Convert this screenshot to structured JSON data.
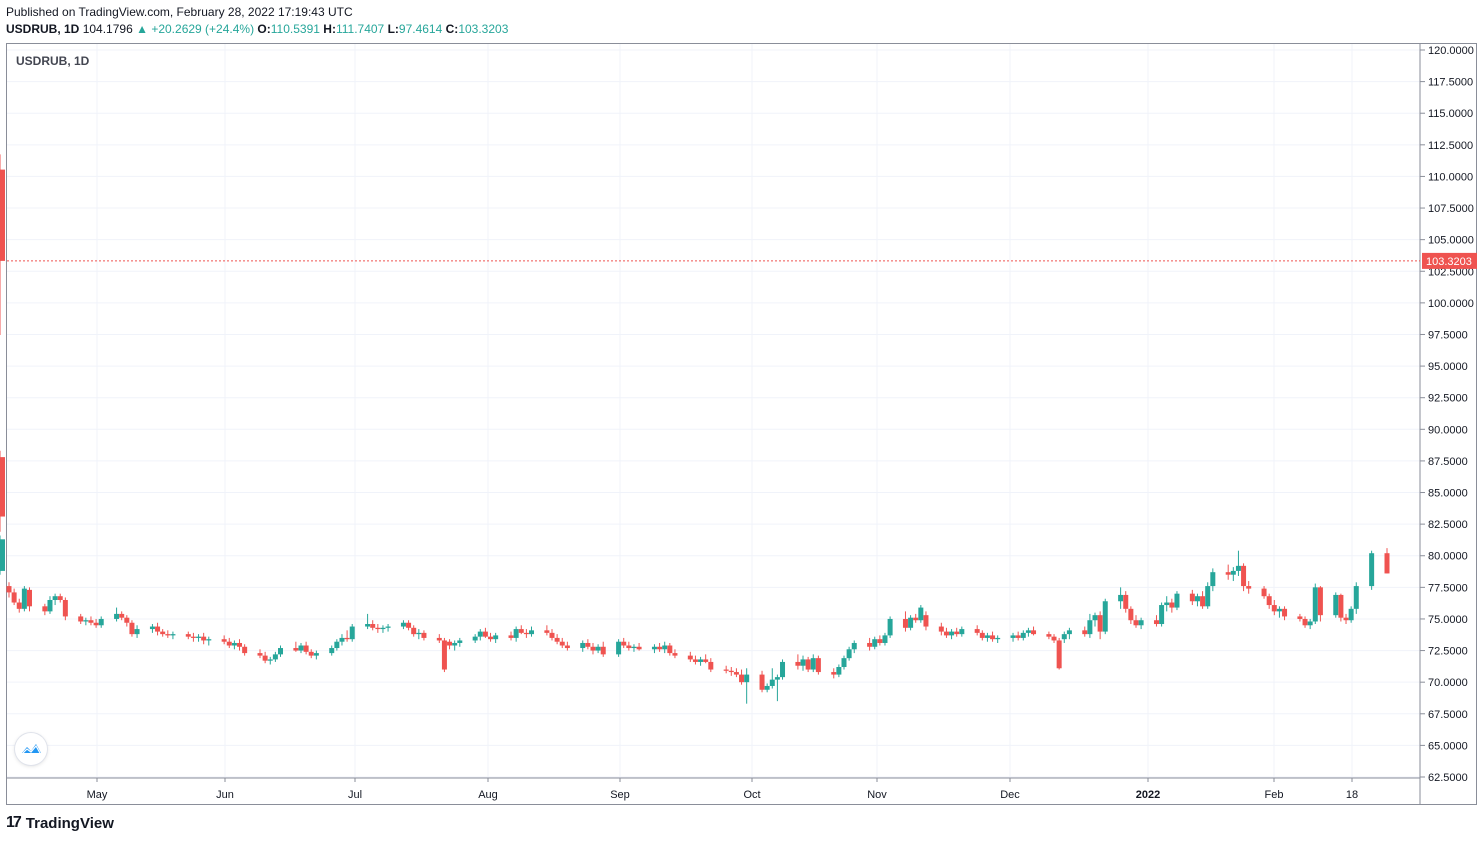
{
  "header": {
    "published": "Published on TradingView.com, February 28, 2022 17:19:43 UTC",
    "symbol": "USDRUB, 1D",
    "last": "104.1796",
    "change_arrow": "▲",
    "change": "+20.2629 (+24.4%)",
    "o_label": "O:",
    "o_value": "110.5391",
    "h_label": "H:",
    "h_value": "111.7407",
    "l_label": "L:",
    "l_value": "97.4614",
    "c_label": "C:",
    "c_value": "103.3203"
  },
  "legend_title": "USDRUB, 1D",
  "footer": {
    "brand": "TradingView",
    "brand_icon": "tradingview-logo-icon"
  },
  "colors": {
    "up": "#26a69a",
    "down": "#ef5350",
    "grid": "#f0f3fa",
    "price_line": "#ef5350",
    "badge": "#2962ff"
  },
  "chart_data": {
    "type": "candlestick",
    "symbol": "USDRUB",
    "interval": "1D",
    "ylim": [
      62.5,
      121.0
    ],
    "y_ticks": [
      "62.5000",
      "65.0000",
      "67.5000",
      "70.0000",
      "72.5000",
      "75.0000",
      "77.5000",
      "80.0000",
      "82.5000",
      "85.0000",
      "87.5000",
      "90.0000",
      "92.5000",
      "95.0000",
      "97.5000",
      "100.0000",
      "102.5000",
      "105.0000",
      "107.5000",
      "110.0000",
      "112.5000",
      "115.0000",
      "117.5000",
      "120.0000"
    ],
    "x_labels": [
      "May",
      "Jun",
      "Jul",
      "Aug",
      "Sep",
      "Oct",
      "Nov",
      "Dec",
      "2022",
      "Feb",
      "18"
    ],
    "last_price_label": "103.3203",
    "last_price": 103.3203,
    "grid": true,
    "candles": [
      [
        77.6,
        77.9,
        76.7,
        77.1
      ],
      [
        77.1,
        77.4,
        76.1,
        76.3
      ],
      [
        76.3,
        76.6,
        75.5,
        75.8
      ],
      [
        75.8,
        77.6,
        75.6,
        77.4
      ],
      [
        77.3,
        77.5,
        75.6,
        76.0
      ],
      [
        76.0,
        76.2,
        75.3,
        75.6
      ],
      [
        75.6,
        76.8,
        75.4,
        76.5
      ],
      [
        76.5,
        77.0,
        76.1,
        76.8
      ],
      [
        76.8,
        77.0,
        76.3,
        76.5
      ],
      [
        76.5,
        76.7,
        74.9,
        75.2
      ],
      [
        75.2,
        75.4,
        74.6,
        74.8
      ],
      [
        74.8,
        75.1,
        74.5,
        74.9
      ],
      [
        74.9,
        75.2,
        74.5,
        74.7
      ],
      [
        74.7,
        75.0,
        74.3,
        74.5
      ],
      [
        74.5,
        75.2,
        74.3,
        75.0
      ],
      [
        75.0,
        75.9,
        74.8,
        75.4
      ],
      [
        75.4,
        75.6,
        74.9,
        75.1
      ],
      [
        75.1,
        75.3,
        74.4,
        74.7
      ],
      [
        74.7,
        74.9,
        73.6,
        73.8
      ],
      [
        73.8,
        74.5,
        73.5,
        74.2
      ],
      [
        74.2,
        74.6,
        73.9,
        74.4
      ],
      [
        74.4,
        74.7,
        73.7,
        74.0
      ],
      [
        74.0,
        74.2,
        73.6,
        73.8
      ],
      [
        73.8,
        74.1,
        73.5,
        73.7
      ],
      [
        73.7,
        74.0,
        73.4,
        73.8
      ],
      [
        73.8,
        74.0,
        73.4,
        73.6
      ],
      [
        73.6,
        73.9,
        73.2,
        73.5
      ],
      [
        73.5,
        73.8,
        73.2,
        73.6
      ],
      [
        73.6,
        73.9,
        73.0,
        73.3
      ],
      [
        73.3,
        73.6,
        72.9,
        73.4
      ],
      [
        73.4,
        73.7,
        73.0,
        73.2
      ],
      [
        73.2,
        73.5,
        72.7,
        72.9
      ],
      [
        72.9,
        73.3,
        72.6,
        73.1
      ],
      [
        73.1,
        73.4,
        72.5,
        72.8
      ],
      [
        72.8,
        73.0,
        72.1,
        72.3
      ],
      [
        72.3,
        72.6,
        71.9,
        72.1
      ],
      [
        72.1,
        72.4,
        71.5,
        71.7
      ],
      [
        71.7,
        72.0,
        71.4,
        71.8
      ],
      [
        71.8,
        72.4,
        71.6,
        72.2
      ],
      [
        72.2,
        72.9,
        72.0,
        72.7
      ],
      [
        72.7,
        73.2,
        72.4,
        72.5
      ],
      [
        72.5,
        73.1,
        72.3,
        72.9
      ],
      [
        72.9,
        73.2,
        72.2,
        72.4
      ],
      [
        72.4,
        72.6,
        71.9,
        72.1
      ],
      [
        72.1,
        72.5,
        71.8,
        72.3
      ],
      [
        72.3,
        72.9,
        72.1,
        72.7
      ],
      [
        72.7,
        73.4,
        72.5,
        73.2
      ],
      [
        73.2,
        73.8,
        72.9,
        73.5
      ],
      [
        73.5,
        74.1,
        73.2,
        73.4
      ],
      [
        73.4,
        74.6,
        73.2,
        74.4
      ],
      [
        74.4,
        75.4,
        74.2,
        74.6
      ],
      [
        74.6,
        74.9,
        74.1,
        74.3
      ],
      [
        74.3,
        74.6,
        73.9,
        74.2
      ],
      [
        74.2,
        74.5,
        73.9,
        74.3
      ],
      [
        74.3,
        74.6,
        74.0,
        74.4
      ],
      [
        74.4,
        74.9,
        74.2,
        74.7
      ],
      [
        74.7,
        74.9,
        74.1,
        74.3
      ],
      [
        74.3,
        74.5,
        73.6,
        73.8
      ],
      [
        73.8,
        74.2,
        73.4,
        73.9
      ],
      [
        73.9,
        74.1,
        73.3,
        73.5
      ],
      [
        73.5,
        73.8,
        73.1,
        73.3
      ],
      [
        73.3,
        73.5,
        70.8,
        71.0
      ],
      [
        73.2,
        73.4,
        72.6,
        72.9
      ],
      [
        72.9,
        73.3,
        72.5,
        73.1
      ],
      [
        73.1,
        73.5,
        72.8,
        73.3
      ],
      [
        73.3,
        73.8,
        73.1,
        73.6
      ],
      [
        73.6,
        74.2,
        73.3,
        74.0
      ],
      [
        74.0,
        74.3,
        73.5,
        73.6
      ],
      [
        73.6,
        73.9,
        73.2,
        73.4
      ],
      [
        73.4,
        73.9,
        73.1,
        73.7
      ],
      [
        73.7,
        74.0,
        73.3,
        73.5
      ],
      [
        73.5,
        74.4,
        73.2,
        74.2
      ],
      [
        74.2,
        74.5,
        73.8,
        73.9
      ],
      [
        73.9,
        74.2,
        73.5,
        73.8
      ],
      [
        73.8,
        74.4,
        73.6,
        74.1
      ],
      [
        74.1,
        74.5,
        73.7,
        73.9
      ],
      [
        73.9,
        74.2,
        73.3,
        73.5
      ],
      [
        73.5,
        73.8,
        73.0,
        73.2
      ],
      [
        73.2,
        73.5,
        72.7,
        72.9
      ],
      [
        72.9,
        73.2,
        72.5,
        72.7
      ],
      [
        72.7,
        73.3,
        72.4,
        73.1
      ],
      [
        73.1,
        73.4,
        72.6,
        72.8
      ],
      [
        72.8,
        73.1,
        72.2,
        72.5
      ],
      [
        72.5,
        73.0,
        72.3,
        72.8
      ],
      [
        72.8,
        73.2,
        72.0,
        72.2
      ],
      [
        72.2,
        73.4,
        72.0,
        73.2
      ],
      [
        73.2,
        73.5,
        72.7,
        72.9
      ],
      [
        72.9,
        73.2,
        72.5,
        72.7
      ],
      [
        72.7,
        73.0,
        72.4,
        72.8
      ],
      [
        72.8,
        73.1,
        72.5,
        72.6
      ],
      [
        72.6,
        73.0,
        72.3,
        72.8
      ],
      [
        72.8,
        73.1,
        72.4,
        72.6
      ],
      [
        72.6,
        73.2,
        72.3,
        72.9
      ],
      [
        72.9,
        73.1,
        72.1,
        72.3
      ],
      [
        72.3,
        72.6,
        71.9,
        72.1
      ],
      [
        72.1,
        72.4,
        71.6,
        71.8
      ],
      [
        71.8,
        72.1,
        71.4,
        71.6
      ],
      [
        71.6,
        72.0,
        71.3,
        71.8
      ],
      [
        71.8,
        72.2,
        71.5,
        71.6
      ],
      [
        71.6,
        71.9,
        70.8,
        71.0
      ],
      [
        71.0,
        71.3,
        70.7,
        70.9
      ],
      [
        70.9,
        71.2,
        70.5,
        70.8
      ],
      [
        70.8,
        71.1,
        70.4,
        70.6
      ],
      [
        70.6,
        71.0,
        69.8,
        70.0
      ],
      [
        70.0,
        71.1,
        68.3,
        70.6
      ],
      [
        70.6,
        70.9,
        69.2,
        69.4
      ],
      [
        69.4,
        69.9,
        69.2,
        69.7
      ],
      [
        69.7,
        71.1,
        69.5,
        70.2
      ],
      [
        70.2,
        70.6,
        68.5,
        70.4
      ],
      [
        70.4,
        71.8,
        70.2,
        71.6
      ],
      [
        71.6,
        72.2,
        71.0,
        71.3
      ],
      [
        71.3,
        72.1,
        70.9,
        71.8
      ],
      [
        71.8,
        72.0,
        70.8,
        71.0
      ],
      [
        71.0,
        72.2,
        70.8,
        71.9
      ],
      [
        71.9,
        72.1,
        70.6,
        70.8
      ],
      [
        70.8,
        71.1,
        70.3,
        70.6
      ],
      [
        70.6,
        71.4,
        70.4,
        71.2
      ],
      [
        71.2,
        72.1,
        71.0,
        71.9
      ],
      [
        71.9,
        72.8,
        71.7,
        72.6
      ],
      [
        72.6,
        73.3,
        72.3,
        73.1
      ],
      [
        73.1,
        73.5,
        72.5,
        72.8
      ],
      [
        72.8,
        73.6,
        72.6,
        73.4
      ],
      [
        73.4,
        73.7,
        72.9,
        73.1
      ],
      [
        73.1,
        73.9,
        72.9,
        73.7
      ],
      [
        73.7,
        75.2,
        73.5,
        75.0
      ],
      [
        75.0,
        75.6,
        74.0,
        74.3
      ],
      [
        74.3,
        75.3,
        74.1,
        75.1
      ],
      [
        75.1,
        75.4,
        74.7,
        74.9
      ],
      [
        74.9,
        76.1,
        74.7,
        75.9
      ],
      [
        75.3,
        75.6,
        74.1,
        74.4
      ],
      [
        74.4,
        74.7,
        73.7,
        74.0
      ],
      [
        74.0,
        74.3,
        73.5,
        73.7
      ],
      [
        73.7,
        74.2,
        73.4,
        74.0
      ],
      [
        74.0,
        74.3,
        73.6,
        73.8
      ],
      [
        73.8,
        74.4,
        73.6,
        74.2
      ],
      [
        74.2,
        74.5,
        73.7,
        73.9
      ],
      [
        73.9,
        74.1,
        73.3,
        73.5
      ],
      [
        73.5,
        73.9,
        73.2,
        73.7
      ],
      [
        73.7,
        74.0,
        73.2,
        73.4
      ],
      [
        73.4,
        73.7,
        73.1,
        73.5
      ],
      [
        73.5,
        73.9,
        73.2,
        73.7
      ],
      [
        73.7,
        74.0,
        73.3,
        73.5
      ],
      [
        73.5,
        74.1,
        73.3,
        73.9
      ],
      [
        73.9,
        74.3,
        73.6,
        74.1
      ],
      [
        74.1,
        74.4,
        73.7,
        73.8
      ],
      [
        73.8,
        74.0,
        73.4,
        73.6
      ],
      [
        73.6,
        73.8,
        73.1,
        73.3
      ],
      [
        73.3,
        73.5,
        71.0,
        71.1
      ],
      [
        73.4,
        74.0,
        73.1,
        73.8
      ],
      [
        73.8,
        74.3,
        73.4,
        74.1
      ],
      [
        74.1,
        74.4,
        73.6,
        73.8
      ],
      [
        73.8,
        75.4,
        73.5,
        74.9
      ],
      [
        74.9,
        75.5,
        74.4,
        75.3
      ],
      [
        75.3,
        75.6,
        73.4,
        74.0
      ],
      [
        74.0,
        76.6,
        73.8,
        76.4
      ],
      [
        76.4,
        77.5,
        75.8,
        76.9
      ],
      [
        76.9,
        77.2,
        75.5,
        75.8
      ],
      [
        75.8,
        76.0,
        74.6,
        74.9
      ],
      [
        74.9,
        75.3,
        74.3,
        74.5
      ],
      [
        74.5,
        75.1,
        74.2,
        74.9
      ],
      [
        74.9,
        75.3,
        74.4,
        74.6
      ],
      [
        74.6,
        76.3,
        74.4,
        76.1
      ],
      [
        76.1,
        76.8,
        75.6,
        76.3
      ],
      [
        76.3,
        76.6,
        75.5,
        75.9
      ],
      [
        75.9,
        77.2,
        75.7,
        77.0
      ],
      [
        77.0,
        77.3,
        76.1,
        76.4
      ],
      [
        76.4,
        77.0,
        76.0,
        76.8
      ],
      [
        76.8,
        77.2,
        75.8,
        76.0
      ],
      [
        76.0,
        77.9,
        75.8,
        77.6
      ],
      [
        77.6,
        79.0,
        77.2,
        78.7
      ],
      [
        78.7,
        79.3,
        78.1,
        78.5
      ],
      [
        78.5,
        79.1,
        78.0,
        78.8
      ],
      [
        78.8,
        80.4,
        78.4,
        79.2
      ],
      [
        79.2,
        79.4,
        77.2,
        77.6
      ],
      [
        77.6,
        78.0,
        77.0,
        77.4
      ],
      [
        77.4,
        77.6,
        76.6,
        76.8
      ],
      [
        76.8,
        77.0,
        75.8,
        76.1
      ],
      [
        76.1,
        76.5,
        75.3,
        75.6
      ],
      [
        75.6,
        76.0,
        75.1,
        75.8
      ],
      [
        75.8,
        76.0,
        74.9,
        75.2
      ],
      [
        75.2,
        75.4,
        74.8,
        75.0
      ],
      [
        75.0,
        75.2,
        74.3,
        74.5
      ],
      [
        74.5,
        75.0,
        74.2,
        74.8
      ],
      [
        74.8,
        77.8,
        74.6,
        77.5
      ],
      [
        77.5,
        77.6,
        74.8,
        75.3
      ],
      [
        75.3,
        77.1,
        75.1,
        76.9
      ],
      [
        76.9,
        77.0,
        74.8,
        75.1
      ],
      [
        75.1,
        75.4,
        74.6,
        74.9
      ],
      [
        74.9,
        76.0,
        74.7,
        75.8
      ],
      [
        75.8,
        77.9,
        75.4,
        77.6
      ],
      [
        77.6,
        80.4,
        77.3,
        80.2
      ],
      [
        80.2,
        80.6,
        78.6,
        78.6
      ],
      [
        78.8,
        81.6,
        78.5,
        81.3
      ],
      [
        87.8,
        88.3,
        83.2,
        83.9
      ],
      [
        84.0,
        84.8,
        81.9,
        83.1
      ],
      [
        110.54,
        111.74,
        97.46,
        103.32
      ]
    ],
    "candle_x_days": [
      0,
      1,
      2,
      3,
      4,
      7,
      8,
      9,
      10,
      11,
      14,
      15,
      16,
      17,
      18,
      21,
      22,
      23,
      24,
      25,
      28,
      29,
      30,
      31,
      32,
      35,
      36,
      37,
      38,
      39,
      42,
      43,
      44,
      45,
      46,
      49,
      50,
      51,
      52,
      53,
      56,
      57,
      58,
      59,
      60,
      63,
      64,
      65,
      66,
      67,
      70,
      71,
      72,
      73,
      74,
      77,
      78,
      79,
      80,
      81,
      84,
      85,
      86,
      87,
      88,
      91,
      92,
      93,
      94,
      95,
      98,
      99,
      100,
      101,
      102,
      105,
      106,
      107,
      108,
      109,
      112,
      113,
      114,
      115,
      116,
      119,
      120,
      121,
      122,
      123,
      126,
      127,
      128,
      129,
      130,
      133,
      134,
      135,
      136,
      137,
      140,
      141,
      142,
      143,
      144,
      147,
      148,
      149,
      150,
      151,
      154,
      155,
      156,
      157,
      158,
      161,
      162,
      163,
      164,
      165,
      168,
      169,
      170,
      171,
      172,
      175,
      176,
      177,
      178,
      179,
      182,
      183,
      184,
      185,
      186,
      189,
      190,
      191,
      192,
      193,
      196,
      197,
      198,
      199,
      200,
      203,
      204,
      205,
      206,
      207,
      210,
      211,
      212,
      213,
      214,
      217,
      218,
      219,
      220,
      221,
      224,
      225,
      226,
      227,
      228,
      231,
      232,
      233,
      234,
      235,
      238,
      239,
      240,
      241,
      242,
      245,
      246,
      247,
      248,
      249,
      252,
      253,
      254,
      255,
      256,
      259,
      260,
      261,
      262,
      263,
      266,
      269
    ]
  }
}
